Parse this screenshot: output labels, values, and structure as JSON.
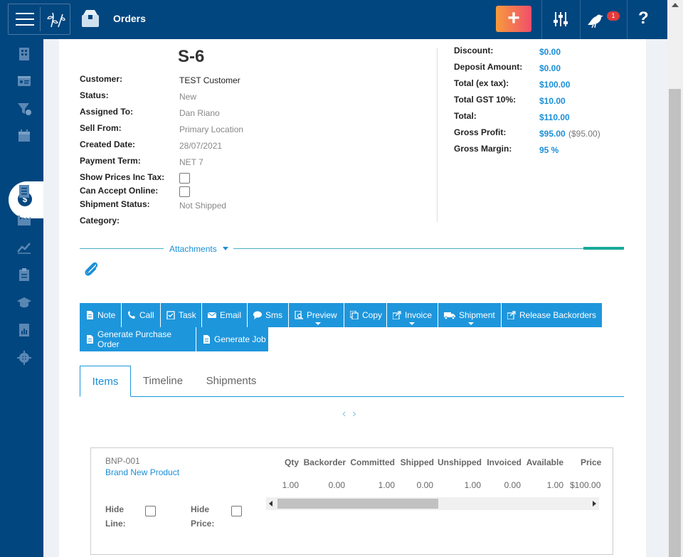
{
  "header": {
    "title": "Orders",
    "add_label": "+",
    "notification_count": "1",
    "help_label": "?",
    "icons": [
      "menu-icon",
      "leaf-logo-icon",
      "orders-box-icon",
      "sliders-icon",
      "bird-notification-icon"
    ]
  },
  "sidebar": {
    "items": [
      "building-icon",
      "id-card-icon",
      "funnel-dollar-icon",
      "calendar-icon",
      "dollar-icon",
      "list-icon",
      "factory-icon",
      "chart-line-icon",
      "clipboard-icon",
      "graduation-cap-icon",
      "report-icon",
      "gear-icon"
    ],
    "active_label": "$"
  },
  "order": {
    "number": "S-6",
    "fields": [
      {
        "label": "Customer:",
        "value": "TEST Customer"
      },
      {
        "label": "Status:",
        "value": "New"
      },
      {
        "label": "Assigned To:",
        "value": "Dan Riano"
      },
      {
        "label": "Sell From:",
        "value": "Primary Location"
      },
      {
        "label": "Created Date:",
        "value": "28/07/2021"
      },
      {
        "label": "Payment Term:",
        "value": "NET 7"
      },
      {
        "label": "Show Prices Inc Tax:",
        "value": ""
      },
      {
        "label": "Can Accept Online:",
        "value": ""
      },
      {
        "label": "Shipment Status:",
        "value": "Not Shipped"
      },
      {
        "label": "Category:",
        "value": ""
      }
    ]
  },
  "summary": [
    {
      "label": "Discount:",
      "value": "$0.00"
    },
    {
      "label": "Deposit Amount:",
      "value": "$0.00"
    },
    {
      "label": "Total (ex tax):",
      "value": "$100.00"
    },
    {
      "label": "Total GST 10%:",
      "value": "$10.00"
    },
    {
      "label": "Total:",
      "value": "$110.00"
    },
    {
      "label": "Gross Profit:",
      "value": "$95.00",
      "extra": "($95.00)"
    },
    {
      "label": "Gross Margin:",
      "value": "95 %"
    }
  ],
  "attachments": {
    "label": "Attachments"
  },
  "actions": [
    {
      "label": "Note",
      "icon": "note-icon"
    },
    {
      "label": "Call",
      "icon": "phone-icon"
    },
    {
      "label": "Task",
      "icon": "task-icon"
    },
    {
      "label": "Email",
      "icon": "email-icon"
    },
    {
      "label": "Sms",
      "icon": "sms-icon"
    },
    {
      "label": "Preview",
      "icon": "preview-icon"
    },
    {
      "label": "Copy",
      "icon": "copy-icon"
    },
    {
      "label": "Invoice",
      "icon": "invoice-icon"
    },
    {
      "label": "Shipment",
      "icon": "truck-icon"
    },
    {
      "label": "Release Backorders",
      "icon": "share-icon"
    },
    {
      "label": "Generate Purchase Order",
      "icon": "document-icon"
    },
    {
      "label": "Generate Job",
      "icon": "document-icon"
    }
  ],
  "tabs": [
    {
      "label": "Items"
    },
    {
      "label": "Timeline"
    },
    {
      "label": "Shipments"
    }
  ],
  "item": {
    "code": "BNP-001",
    "name": "Brand New Product",
    "hide_line_label": "Hide Line:",
    "hide_price_label": "Hide Price:",
    "columns": [
      "Qty",
      "Backorder",
      "Committed",
      "Shipped",
      "Unshipped",
      "Invoiced",
      "Available",
      "Price"
    ],
    "values": [
      "1.00",
      "0.00",
      "1.00",
      "0.00",
      "1.00",
      "0.00",
      "1.00",
      "$100.00"
    ]
  }
}
